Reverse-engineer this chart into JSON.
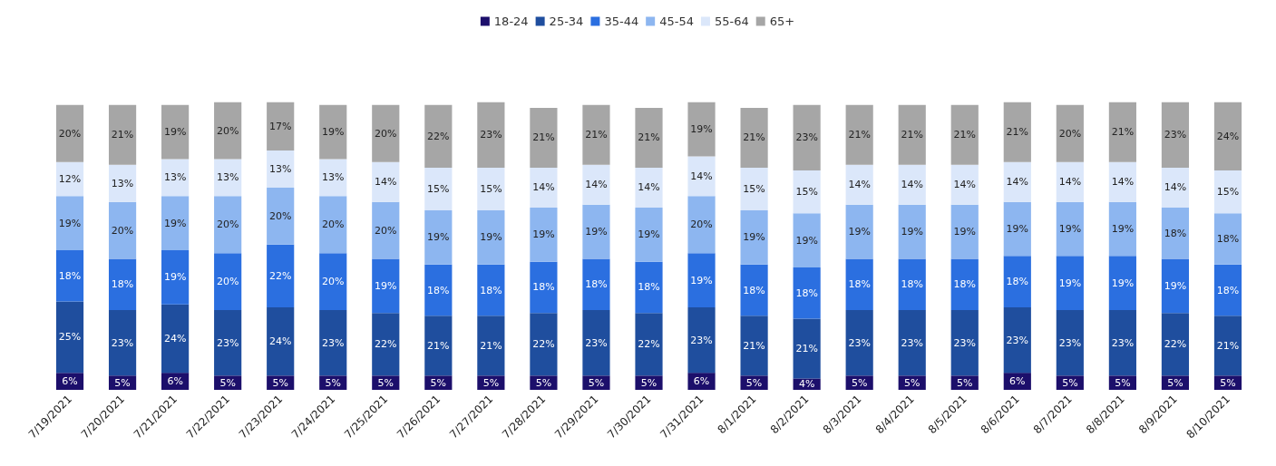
{
  "chart_data": {
    "type": "bar",
    "stacked": true,
    "legend": "top",
    "grid": false,
    "categories": [
      "7/19/2021",
      "7/20/2021",
      "7/21/2021",
      "7/22/2021",
      "7/23/2021",
      "7/24/2021",
      "7/25/2021",
      "7/26/2021",
      "7/27/2021",
      "7/28/2021",
      "7/29/2021",
      "7/30/2021",
      "7/31/2021",
      "8/1/2021",
      "8/2/2021",
      "8/3/2021",
      "8/4/2021",
      "8/5/2021",
      "8/6/2021",
      "8/7/2021",
      "8/8/2021",
      "8/9/2021",
      "8/10/2021"
    ],
    "series": [
      {
        "name": "18-24",
        "color": "#1c0f6b",
        "values": [
          6,
          5,
          6,
          5,
          5,
          5,
          5,
          5,
          5,
          5,
          5,
          5,
          6,
          5,
          4,
          5,
          5,
          5,
          6,
          5,
          5,
          5,
          5
        ],
        "value_labels": [
          "6%",
          "5%",
          "6%",
          "5%",
          "5%",
          "5%",
          "5%",
          "5%",
          "5%",
          "5%",
          "5%",
          "5%",
          "6%",
          "5%",
          "4%",
          "5%",
          "5%",
          "5%",
          "6%",
          "5%",
          "5%",
          "5%",
          "5%"
        ]
      },
      {
        "name": "25-34",
        "color": "#1f4e9e",
        "values": [
          25,
          23,
          24,
          23,
          24,
          23,
          22,
          21,
          21,
          22,
          23,
          22,
          23,
          21,
          21,
          23,
          23,
          23,
          23,
          23,
          23,
          22,
          21
        ],
        "value_labels": [
          "25%",
          "23%",
          "24%",
          "23%",
          "24%",
          "23%",
          "22%",
          "21%",
          "21%",
          "22%",
          "23%",
          "22%",
          "23%",
          "21%",
          "21%",
          "23%",
          "23%",
          "23%",
          "23%",
          "23%",
          "23%",
          "22%",
          "21%"
        ]
      },
      {
        "name": "35-44",
        "color": "#2b6fe0",
        "values": [
          18,
          18,
          19,
          20,
          22,
          20,
          19,
          18,
          18,
          18,
          18,
          18,
          19,
          18,
          18,
          18,
          18,
          18,
          18,
          19,
          19,
          19,
          18
        ],
        "value_labels": [
          "18%",
          "18%",
          "19%",
          "20%",
          "22%",
          "20%",
          "19%",
          "18%",
          "18%",
          "18%",
          "18%",
          "18%",
          "19%",
          "18%",
          "18%",
          "18%",
          "18%",
          "18%",
          "18%",
          "19%",
          "19%",
          "19%",
          "18%"
        ]
      },
      {
        "name": "45-54",
        "color": "#8db6f0",
        "values": [
          19,
          20,
          19,
          20,
          20,
          20,
          20,
          19,
          19,
          19,
          19,
          19,
          20,
          19,
          19,
          19,
          19,
          19,
          19,
          19,
          19,
          18,
          18
        ],
        "value_labels": [
          "19%",
          "20%",
          "19%",
          "20%",
          "20%",
          "20%",
          "20%",
          "19%",
          "19%",
          "19%",
          "19%",
          "19%",
          "20%",
          "19%",
          "19%",
          "19%",
          "19%",
          "19%",
          "19%",
          "19%",
          "19%",
          "18%",
          "18%"
        ]
      },
      {
        "name": "55-64",
        "color": "#dbe7fa",
        "values": [
          12,
          13,
          13,
          13,
          13,
          13,
          14,
          15,
          15,
          14,
          14,
          14,
          14,
          15,
          15,
          14,
          14,
          14,
          14,
          14,
          14,
          14,
          15
        ],
        "value_labels": [
          "12%",
          "13%",
          "13%",
          "13%",
          "13%",
          "13%",
          "14%",
          "15%",
          "15%",
          "14%",
          "14%",
          "14%",
          "14%",
          "15%",
          "15%",
          "14%",
          "14%",
          "14%",
          "14%",
          "14%",
          "14%",
          "14%",
          "15%"
        ]
      },
      {
        "name": "65+",
        "color": "#a6a6a6",
        "values": [
          20,
          21,
          19,
          20,
          17,
          19,
          20,
          22,
          23,
          21,
          21,
          21,
          19,
          21,
          23,
          21,
          21,
          21,
          21,
          20,
          21,
          23,
          24
        ],
        "value_labels": [
          "20%",
          "21%",
          "19%",
          "20%",
          "17%",
          "19%",
          "20%",
          "22%",
          "23%",
          "21%",
          "21%",
          "21%",
          "19%",
          "21%",
          "23%",
          "21%",
          "21%",
          "21%",
          "21%",
          "20%",
          "21%",
          "23%",
          "24%"
        ]
      }
    ]
  }
}
